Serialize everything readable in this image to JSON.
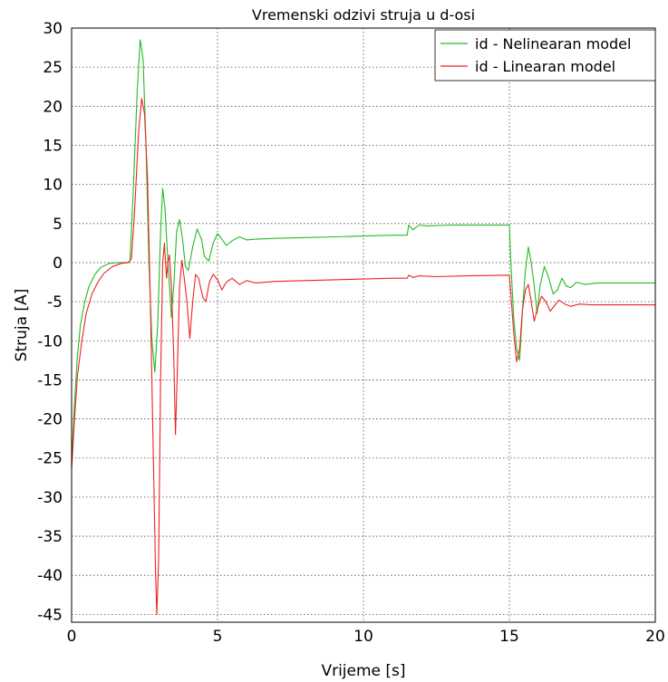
{
  "chart_data": {
    "type": "line",
    "title": "Vremenski odzivi struja u d-osi",
    "xlabel": "Vrijeme [s]",
    "ylabel": "Struja [A]",
    "xlim": [
      0,
      20
    ],
    "ylim": [
      -46,
      30
    ],
    "x_ticks": [
      0,
      5,
      10,
      15,
      20
    ],
    "y_ticks": [
      30,
      25,
      20,
      15,
      10,
      5,
      0,
      -5,
      -10,
      -15,
      -20,
      -25,
      -30,
      -35,
      -40,
      -45
    ],
    "grid": true,
    "legend_position": "top-right",
    "series": [
      {
        "name": "id - Nelinearan model",
        "color": "#22bb22",
        "points": [
          [
            0,
            -25.5
          ],
          [
            0.1,
            -18
          ],
          [
            0.2,
            -12
          ],
          [
            0.3,
            -8
          ],
          [
            0.45,
            -5
          ],
          [
            0.6,
            -3
          ],
          [
            0.8,
            -1.5
          ],
          [
            1.0,
            -0.6
          ],
          [
            1.3,
            -0.1
          ],
          [
            1.6,
            0
          ],
          [
            1.9,
            0
          ],
          [
            2.0,
            0.2
          ],
          [
            2.1,
            8
          ],
          [
            2.25,
            22
          ],
          [
            2.35,
            28.5
          ],
          [
            2.45,
            26
          ],
          [
            2.55,
            15
          ],
          [
            2.65,
            0
          ],
          [
            2.75,
            -10
          ],
          [
            2.85,
            -14
          ],
          [
            2.95,
            -8
          ],
          [
            3.05,
            4
          ],
          [
            3.12,
            9.5
          ],
          [
            3.2,
            7
          ],
          [
            3.3,
            0
          ],
          [
            3.42,
            -7
          ],
          [
            3.5,
            -3
          ],
          [
            3.6,
            4
          ],
          [
            3.7,
            5.5
          ],
          [
            3.8,
            3
          ],
          [
            3.9,
            -0.5
          ],
          [
            4.0,
            -1
          ],
          [
            4.15,
            2
          ],
          [
            4.3,
            4.3
          ],
          [
            4.45,
            3
          ],
          [
            4.55,
            0.8
          ],
          [
            4.7,
            0.2
          ],
          [
            4.85,
            2.5
          ],
          [
            5.0,
            3.7
          ],
          [
            5.15,
            3
          ],
          [
            5.3,
            2.2
          ],
          [
            5.5,
            2.8
          ],
          [
            5.75,
            3.3
          ],
          [
            6.0,
            2.9
          ],
          [
            6.3,
            3
          ],
          [
            7.0,
            3.1
          ],
          [
            8.0,
            3.2
          ],
          [
            9.0,
            3.3
          ],
          [
            10.0,
            3.4
          ],
          [
            11.0,
            3.5
          ],
          [
            11.5,
            3.5
          ],
          [
            11.55,
            4.8
          ],
          [
            11.7,
            4.2
          ],
          [
            11.9,
            4.8
          ],
          [
            12.2,
            4.7
          ],
          [
            13.0,
            4.8
          ],
          [
            14.0,
            4.8
          ],
          [
            15.0,
            4.8
          ],
          [
            15.05,
            0
          ],
          [
            15.15,
            -7
          ],
          [
            15.25,
            -11
          ],
          [
            15.35,
            -12.5
          ],
          [
            15.45,
            -6
          ],
          [
            15.55,
            -1
          ],
          [
            15.65,
            2
          ],
          [
            15.75,
            0
          ],
          [
            15.85,
            -3
          ],
          [
            15.95,
            -6.5
          ],
          [
            16.05,
            -3
          ],
          [
            16.2,
            -0.5
          ],
          [
            16.35,
            -2
          ],
          [
            16.5,
            -4
          ],
          [
            16.65,
            -3.5
          ],
          [
            16.8,
            -2
          ],
          [
            16.95,
            -3
          ],
          [
            17.1,
            -3.2
          ],
          [
            17.3,
            -2.5
          ],
          [
            17.6,
            -2.8
          ],
          [
            18.0,
            -2.6
          ],
          [
            20.0,
            -2.6
          ]
        ]
      },
      {
        "name": "id - Linearan model",
        "color": "#ee2222",
        "points": [
          [
            0,
            -26.5
          ],
          [
            0.1,
            -20
          ],
          [
            0.2,
            -14.5
          ],
          [
            0.35,
            -10
          ],
          [
            0.5,
            -6.5
          ],
          [
            0.7,
            -4
          ],
          [
            0.9,
            -2.5
          ],
          [
            1.1,
            -1.4
          ],
          [
            1.4,
            -0.5
          ],
          [
            1.7,
            -0.1
          ],
          [
            1.95,
            0
          ],
          [
            2.05,
            0.5
          ],
          [
            2.15,
            6
          ],
          [
            2.3,
            17
          ],
          [
            2.4,
            21
          ],
          [
            2.5,
            19
          ],
          [
            2.6,
            11
          ],
          [
            2.7,
            -5
          ],
          [
            2.8,
            -25
          ],
          [
            2.88,
            -40
          ],
          [
            2.92,
            -45
          ],
          [
            2.98,
            -38
          ],
          [
            3.05,
            -15
          ],
          [
            3.12,
            0
          ],
          [
            3.18,
            2.5
          ],
          [
            3.25,
            -2
          ],
          [
            3.3,
            0
          ],
          [
            3.35,
            1
          ],
          [
            3.42,
            -3
          ],
          [
            3.5,
            -12
          ],
          [
            3.56,
            -22
          ],
          [
            3.62,
            -14
          ],
          [
            3.7,
            -3
          ],
          [
            3.78,
            0.3
          ],
          [
            3.86,
            -2
          ],
          [
            3.95,
            -5
          ],
          [
            4.05,
            -9.7
          ],
          [
            4.15,
            -5
          ],
          [
            4.25,
            -1.5
          ],
          [
            4.35,
            -2
          ],
          [
            4.5,
            -4.5
          ],
          [
            4.6,
            -5
          ],
          [
            4.72,
            -2.5
          ],
          [
            4.85,
            -1.5
          ],
          [
            5.0,
            -2.2
          ],
          [
            5.15,
            -3.5
          ],
          [
            5.3,
            -2.5
          ],
          [
            5.5,
            -2
          ],
          [
            5.75,
            -2.8
          ],
          [
            6.0,
            -2.3
          ],
          [
            6.3,
            -2.6
          ],
          [
            7.0,
            -2.4
          ],
          [
            8.0,
            -2.3
          ],
          [
            9.0,
            -2.2
          ],
          [
            10.0,
            -2.1
          ],
          [
            11.0,
            -2
          ],
          [
            11.5,
            -2
          ],
          [
            11.55,
            -1.6
          ],
          [
            11.7,
            -1.9
          ],
          [
            11.9,
            -1.7
          ],
          [
            12.5,
            -1.8
          ],
          [
            13.5,
            -1.7
          ],
          [
            15.0,
            -1.6
          ],
          [
            15.05,
            -4
          ],
          [
            15.15,
            -9
          ],
          [
            15.25,
            -12.7
          ],
          [
            15.35,
            -11
          ],
          [
            15.45,
            -6
          ],
          [
            15.55,
            -3.5
          ],
          [
            15.65,
            -2.8
          ],
          [
            15.75,
            -5
          ],
          [
            15.85,
            -7.5
          ],
          [
            15.95,
            -6
          ],
          [
            16.1,
            -4.3
          ],
          [
            16.25,
            -5
          ],
          [
            16.4,
            -6.2
          ],
          [
            16.55,
            -5.5
          ],
          [
            16.7,
            -4.8
          ],
          [
            16.9,
            -5.3
          ],
          [
            17.1,
            -5.6
          ],
          [
            17.4,
            -5.3
          ],
          [
            17.8,
            -5.4
          ],
          [
            18.5,
            -5.4
          ],
          [
            20.0,
            -5.4
          ]
        ]
      }
    ]
  }
}
